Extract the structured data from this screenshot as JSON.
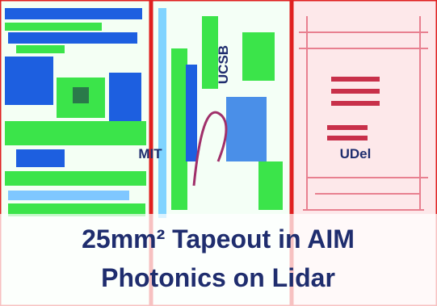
{
  "labels": {
    "left": "MIT",
    "middle": "UCSB",
    "right": "UDel"
  },
  "caption": {
    "line1": "25mm² Tapeout in AIM",
    "line2": "Photonics on Lidar"
  }
}
